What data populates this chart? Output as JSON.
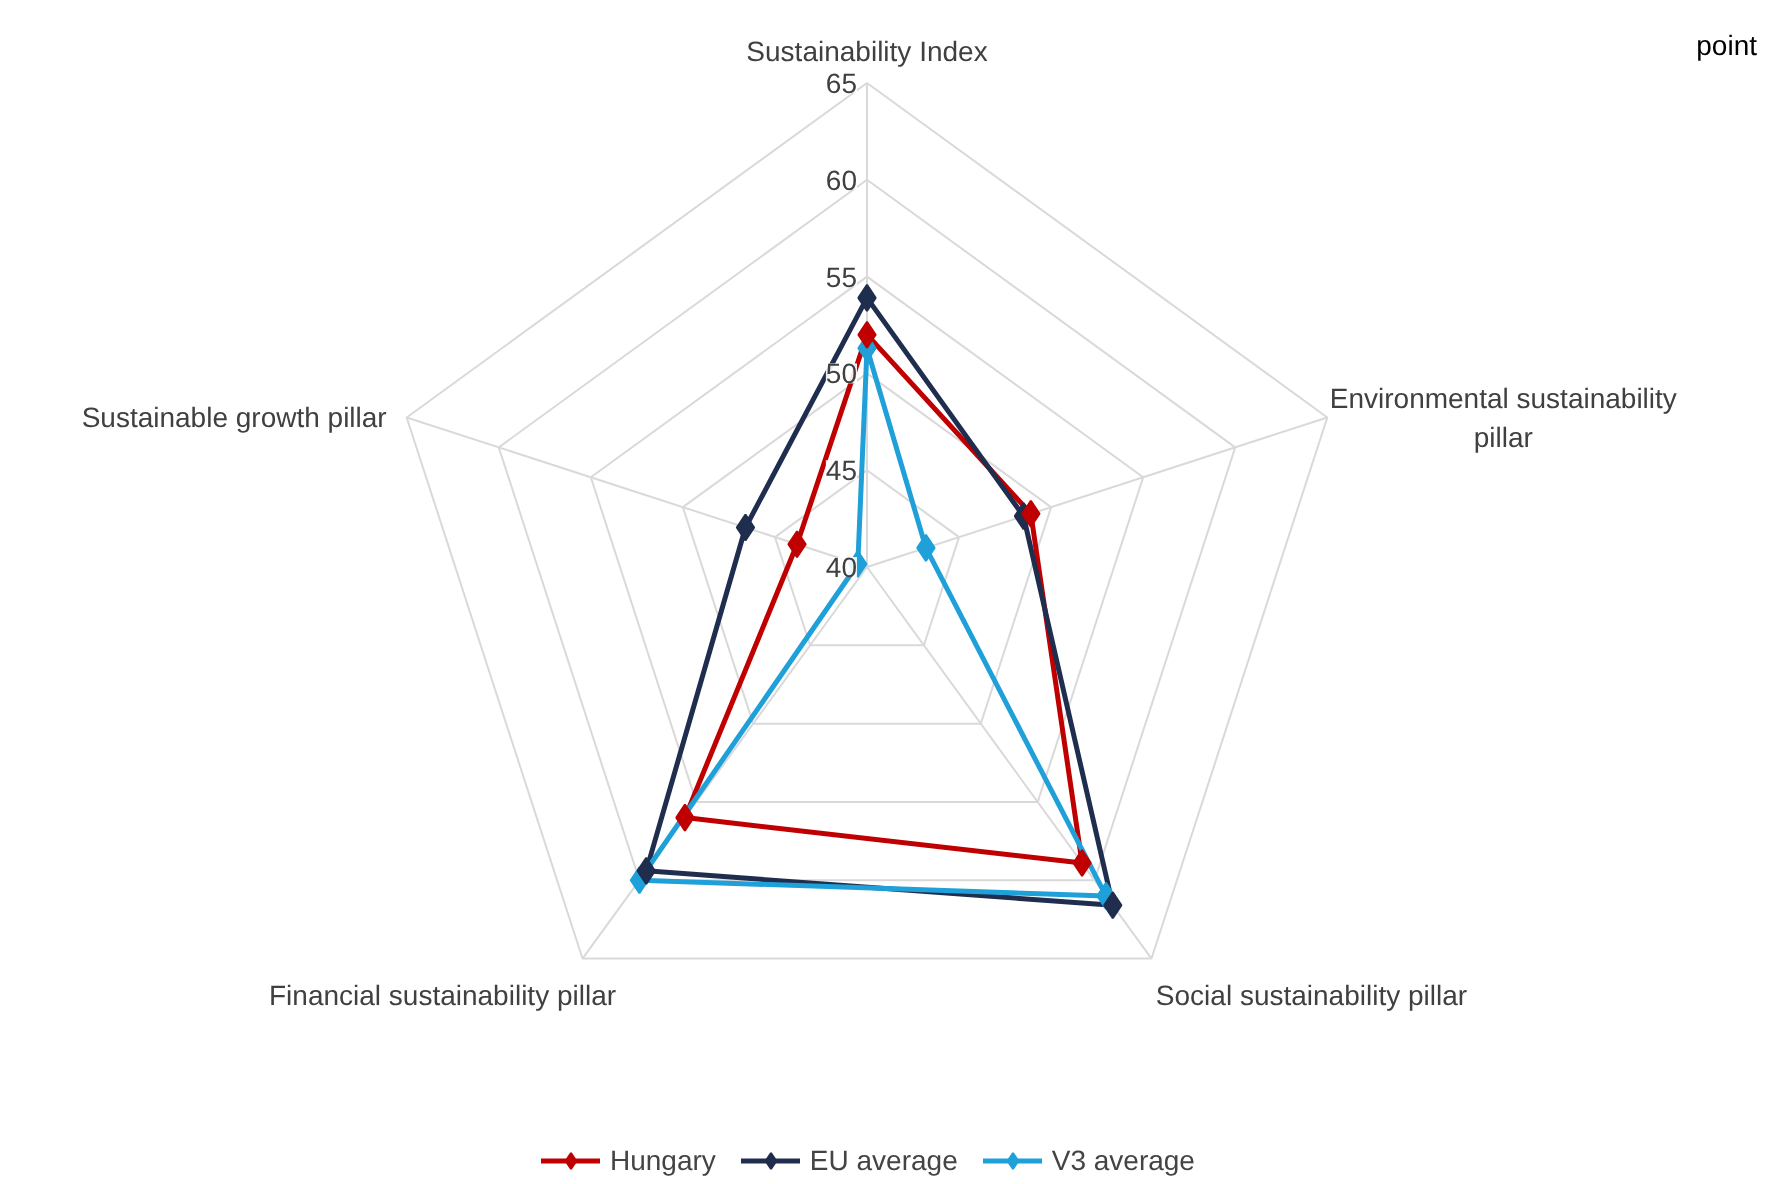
{
  "chart_data": {
    "type": "radar",
    "categories": [
      "Sustainability Index",
      "Environmental sustainability pillar",
      "Social sustainability pillar",
      "Financial sustainability pillar",
      "Sustainable growth pillar"
    ],
    "series": [
      {
        "name": "Hungary",
        "color": "#c00000",
        "values": [
          52.0,
          48.9,
          58.9,
          56.0,
          43.8
        ]
      },
      {
        "name": "EU average",
        "color": "#1f2d4e",
        "values": [
          53.9,
          48.5,
          61.6,
          59.4,
          46.6
        ]
      },
      {
        "name": "V3 average",
        "color": "#1fa0d8",
        "values": [
          51.3,
          43.2,
          61.0,
          60.0,
          40.5
        ]
      }
    ],
    "ylim": [
      40,
      65
    ],
    "yticks": [
      40,
      45,
      50,
      55,
      60,
      65
    ],
    "grid": true,
    "legend": "bottom",
    "marker": "diamond",
    "line_style": "solid",
    "annotations": [
      "point"
    ]
  }
}
